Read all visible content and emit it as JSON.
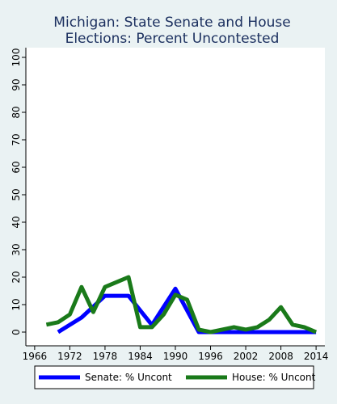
{
  "chart_data": {
    "type": "line",
    "title_lines": [
      "Michigan: State Senate and House",
      "Elections: Percent Uncontested"
    ],
    "xlabel": "",
    "ylabel": "",
    "xlim": [
      1964.5,
      2015.5
    ],
    "ylim": [
      0,
      100
    ],
    "x_ticks": [
      1966,
      1972,
      1978,
      1984,
      1990,
      1996,
      2002,
      2008,
      2014
    ],
    "y_ticks": [
      0,
      10,
      20,
      30,
      40,
      50,
      60,
      70,
      80,
      90,
      100
    ],
    "grid": false,
    "legend_position": "bottom",
    "series": [
      {
        "name": "Senate: % Uncont",
        "color": "#0000ff",
        "x": [
          1970,
          1974,
          1978,
          1982,
          1986,
          1990,
          1994,
          1998,
          2002,
          2006,
          2010,
          2014
        ],
        "y": [
          0,
          5.3,
          13.2,
          13.2,
          2.6,
          15.8,
          0,
          0,
          0,
          0,
          0,
          0
        ]
      },
      {
        "name": "House: % Uncont",
        "color": "#1a7a1a",
        "x": [
          1968,
          1970,
          1972,
          1974,
          1976,
          1978,
          1980,
          1982,
          1984,
          1986,
          1988,
          1990,
          1992,
          1994,
          1996,
          1998,
          2000,
          2002,
          2004,
          2006,
          2008,
          2010,
          2012,
          2014
        ],
        "y": [
          2.7,
          3.6,
          6.4,
          16.4,
          7.3,
          16.4,
          18.2,
          20.0,
          1.8,
          1.8,
          6.4,
          13.6,
          11.8,
          0.9,
          0.0,
          0.9,
          1.8,
          0.9,
          1.8,
          4.5,
          9.1,
          2.7,
          1.8,
          0.0
        ]
      }
    ]
  }
}
